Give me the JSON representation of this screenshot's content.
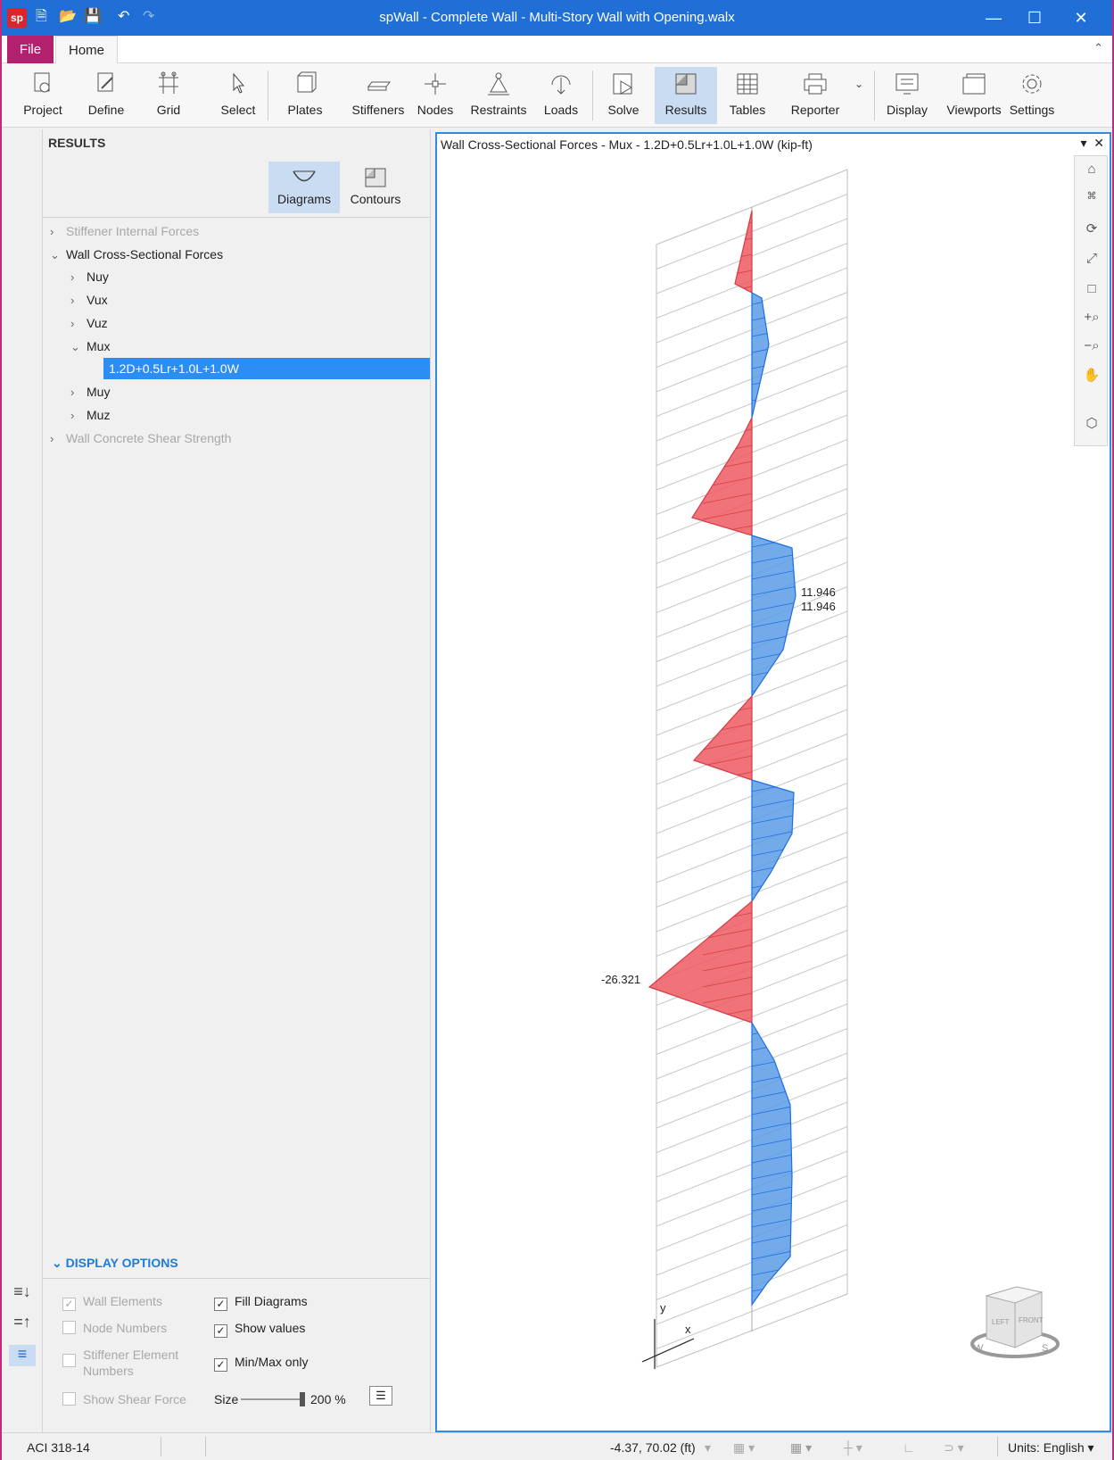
{
  "window": {
    "title": "spWall - Complete Wall - Multi-Story Wall with Opening.walx",
    "logo_text": "sp"
  },
  "menu": {
    "file": "File",
    "home": "Home"
  },
  "ribbon": [
    {
      "label": "Project",
      "icon": "project-icon"
    },
    {
      "label": "Define",
      "icon": "define-icon"
    },
    {
      "label": "Grid",
      "icon": "grid-icon"
    },
    {
      "label": "Select",
      "icon": "cursor-icon"
    },
    {
      "label": "Plates",
      "icon": "plate-icon"
    },
    {
      "label": "Stiffeners",
      "icon": "stiffener-icon"
    },
    {
      "label": "Nodes",
      "icon": "node-icon"
    },
    {
      "label": "Restraints",
      "icon": "restraint-icon"
    },
    {
      "label": "Loads",
      "icon": "load-icon"
    },
    {
      "label": "Solve",
      "icon": "solve-icon"
    },
    {
      "label": "Results",
      "icon": "results-icon"
    },
    {
      "label": "Tables",
      "icon": "table-icon"
    },
    {
      "label": "Reporter",
      "icon": "printer-icon"
    },
    {
      "label": "Display",
      "icon": "display-icon"
    },
    {
      "label": "Viewports",
      "icon": "viewports-icon"
    },
    {
      "label": "Settings",
      "icon": "gear-icon"
    }
  ],
  "panel": {
    "title": "RESULTS",
    "diagrams": "Diagrams",
    "contours": "Contours",
    "tree": [
      {
        "label": "Stiffener Internal Forces",
        "level": 0,
        "state": "collapsed",
        "disabled": true
      },
      {
        "label": "Wall Cross-Sectional Forces",
        "level": 0,
        "state": "expanded",
        "disabled": false
      },
      {
        "label": "Nuy",
        "level": 1,
        "state": "collapsed"
      },
      {
        "label": "Vux",
        "level": 1,
        "state": "collapsed"
      },
      {
        "label": "Vuz",
        "level": 1,
        "state": "collapsed"
      },
      {
        "label": "Mux",
        "level": 1,
        "state": "expanded"
      },
      {
        "label": "1.2D+0.5Lr+1.0L+1.0W",
        "level": 2,
        "state": "selected"
      },
      {
        "label": "Muy",
        "level": 1,
        "state": "collapsed"
      },
      {
        "label": "Muz",
        "level": 1,
        "state": "collapsed"
      },
      {
        "label": "Wall Concrete Shear Strength",
        "level": 0,
        "state": "collapsed",
        "disabled": true
      }
    ],
    "display_options": {
      "title": "DISPLAY OPTIONS",
      "wall_elements": "Wall Elements",
      "node_numbers": "Node Numbers",
      "stiffener_numbers": "Stiffener Element Numbers",
      "show_shear": "Show Shear Force",
      "fill_diagrams": "Fill Diagrams",
      "show_values": "Show values",
      "minmax_only": "Min/Max only",
      "size_label": "Size",
      "size_value": "200 %",
      "size_fraction": 1.0
    }
  },
  "viewport": {
    "title": "Wall Cross-Sectional Forces - Mux - 1.2D+0.5Lr+1.0L+1.0W (kip-ft)",
    "max_label_1": "11.946",
    "max_label_2": "11.946",
    "min_label": "-26.321",
    "axis_y": "y",
    "axis_x": "x",
    "cube_left": "LEFT",
    "cube_front": "FRONT",
    "compass_w": "W",
    "compass_s": "S",
    "positive_color": "#5b9be6",
    "negative_color": "#ee5a63"
  },
  "status": {
    "code": "ACI 318-14",
    "coords": "-4.37, 70.02 (ft)",
    "units_label": "Units:",
    "units_value": "English"
  }
}
